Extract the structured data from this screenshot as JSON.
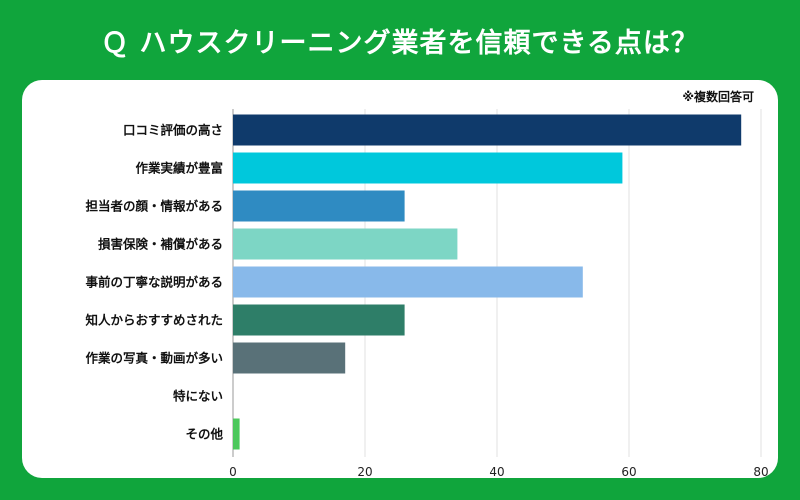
{
  "title": "Ｑ ハウスクリーニング業者を信頼できる点は？",
  "note": "※複数回答可",
  "chart_data": {
    "type": "bar",
    "orientation": "horizontal",
    "categories": [
      "口コミ評価の高さ",
      "作業実績が豊富",
      "担当者の顔・情報がある",
      "損害保険・補償がある",
      "事前の丁寧な説明がある",
      "知人からおすすめされた",
      "作業の写真・動画が多い",
      "特にない",
      "その他"
    ],
    "values": [
      77,
      59,
      26,
      34,
      53,
      26,
      17,
      0,
      1
    ],
    "colors": [
      "#0f3a6b",
      "#00c8dc",
      "#2f8bc2",
      "#7dd6c5",
      "#88b9ea",
      "#2e7e68",
      "#597178",
      "#cccccc",
      "#4cc85c"
    ],
    "xlim": [
      0,
      80
    ],
    "xticks": [
      0,
      20,
      40,
      60,
      80
    ],
    "grid": true
  }
}
